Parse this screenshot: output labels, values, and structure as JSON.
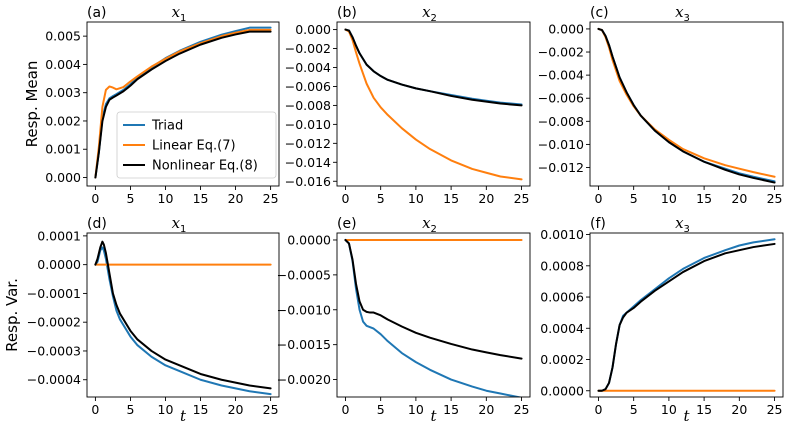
{
  "chart_data": {
    "type": "line",
    "legend": {
      "location": "panel (a), lower-right",
      "entries": [
        {
          "name": "Triad",
          "color": "#1f77b4"
        },
        {
          "name": "Linear Eq.(7)",
          "color": "#ff7f0e"
        },
        {
          "name": "Nonlinear Eq.(8)",
          "color": "#000000"
        }
      ]
    },
    "row_labels": {
      "top": "Resp. Mean",
      "bottom": "Resp. Var."
    },
    "xlabel": "t",
    "panels": [
      {
        "id": "a",
        "tag": "(a)",
        "title_var": "x",
        "title_sub": "1",
        "xlim": [
          -1.2,
          26.2
        ],
        "ylim": [
          -0.0003,
          0.0055
        ],
        "xticks": [
          0,
          5,
          10,
          15,
          20,
          25
        ],
        "yticks": [
          0.0,
          0.001,
          0.002,
          0.003,
          0.004,
          0.005
        ],
        "ytick_labels": [
          "0.000",
          "0.001",
          "0.002",
          "0.003",
          "0.004",
          "0.005"
        ],
        "series": [
          {
            "name": "Triad",
            "color": "#1f77b4",
            "x": [
              0,
              0.5,
              1,
              1.5,
              2,
              2.5,
              3,
              4,
              5,
              6,
              8,
              10,
              12,
              15,
              18,
              20,
              22,
              25
            ],
            "y": [
              0,
              0.0009,
              0.0021,
              0.0026,
              0.0028,
              0.00288,
              0.00295,
              0.0031,
              0.0033,
              0.00355,
              0.0039,
              0.00422,
              0.00448,
              0.0048,
              0.00505,
              0.00518,
              0.0053,
              0.0053
            ]
          },
          {
            "name": "Linear Eq.(7)",
            "color": "#ff7f0e",
            "x": [
              0,
              0.5,
              1,
              1.5,
              2,
              2.5,
              3,
              4,
              5,
              6,
              8,
              10,
              12,
              15,
              18,
              20,
              22,
              25
            ],
            "y": [
              0,
              0.0011,
              0.0025,
              0.0031,
              0.00322,
              0.00318,
              0.00312,
              0.0032,
              0.0034,
              0.00358,
              0.00392,
              0.0042,
              0.00446,
              0.00475,
              0.005,
              0.00512,
              0.00522,
              0.00522
            ]
          },
          {
            "name": "Nonlinear Eq.(8)",
            "color": "#000000",
            "x": [
              0,
              0.5,
              1,
              1.5,
              2,
              2.5,
              3,
              4,
              5,
              6,
              8,
              10,
              12,
              15,
              18,
              20,
              22,
              25
            ],
            "y": [
              0,
              0.0009,
              0.002,
              0.0025,
              0.00275,
              0.00283,
              0.0029,
              0.00305,
              0.00325,
              0.00348,
              0.00382,
              0.00412,
              0.00438,
              0.0047,
              0.00494,
              0.00506,
              0.00516,
              0.00516
            ]
          }
        ]
      },
      {
        "id": "b",
        "tag": "(b)",
        "title_var": "x",
        "title_sub": "2",
        "xlim": [
          -1.2,
          26.2
        ],
        "ylim": [
          -0.0165,
          0.0008
        ],
        "xticks": [
          0,
          5,
          10,
          15,
          20,
          25
        ],
        "yticks": [
          0.0,
          -0.002,
          -0.004,
          -0.006,
          -0.008,
          -0.01,
          -0.012,
          -0.014,
          -0.016
        ],
        "ytick_labels": [
          "0.000",
          "−0.002",
          "−0.004",
          "−0.006",
          "−0.008",
          "−0.010",
          "−0.012",
          "−0.014",
          "−0.016"
        ],
        "series": [
          {
            "name": "Triad",
            "color": "#1f77b4",
            "x": [
              0,
              0.5,
              1,
              1.5,
              2,
              3,
              4,
              5,
              6,
              8,
              10,
              12,
              15,
              18,
              20,
              22,
              25
            ],
            "y": [
              0,
              -0.0001,
              -0.0008,
              -0.0017,
              -0.0025,
              -0.0037,
              -0.0044,
              -0.0049,
              -0.0053,
              -0.0058,
              -0.0062,
              -0.0065,
              -0.0069,
              -0.0073,
              -0.0075,
              -0.0077,
              -0.0079
            ]
          },
          {
            "name": "Linear Eq.(7)",
            "color": "#ff7f0e",
            "x": [
              0,
              0.5,
              1,
              1.5,
              2,
              3,
              4,
              5,
              6,
              8,
              10,
              12,
              15,
              18,
              20,
              22,
              25
            ],
            "y": [
              0,
              -0.0002,
              -0.0011,
              -0.0024,
              -0.0036,
              -0.0057,
              -0.0072,
              -0.0082,
              -0.009,
              -0.0104,
              -0.0116,
              -0.0126,
              -0.0138,
              -0.0147,
              -0.0151,
              -0.0155,
              -0.0158
            ]
          },
          {
            "name": "Nonlinear Eq.(8)",
            "color": "#000000",
            "x": [
              0,
              0.5,
              1,
              1.5,
              2,
              3,
              4,
              5,
              6,
              8,
              10,
              12,
              15,
              18,
              20,
              22,
              25
            ],
            "y": [
              0,
              -0.0001,
              -0.0008,
              -0.0017,
              -0.0025,
              -0.0037,
              -0.0044,
              -0.0049,
              -0.0053,
              -0.0058,
              -0.0062,
              -0.0065,
              -0.007,
              -0.0074,
              -0.0076,
              -0.0078,
              -0.008
            ]
          }
        ]
      },
      {
        "id": "c",
        "tag": "(c)",
        "title_var": "x",
        "title_sub": "3",
        "xlim": [
          -1.2,
          26.2
        ],
        "ylim": [
          -0.0136,
          0.0006
        ],
        "xticks": [
          0,
          5,
          10,
          15,
          20,
          25
        ],
        "yticks": [
          0.0,
          -0.002,
          -0.004,
          -0.006,
          -0.008,
          -0.01,
          -0.012
        ],
        "ytick_labels": [
          "0.000",
          "−0.002",
          "−0.004",
          "−0.006",
          "−0.008",
          "−0.010",
          "−0.012"
        ],
        "series": [
          {
            "name": "Triad",
            "color": "#1f77b4",
            "x": [
              0,
              0.5,
              1,
              1.5,
              2,
              3,
              4,
              5,
              6,
              8,
              10,
              12,
              15,
              18,
              20,
              22,
              25
            ],
            "y": [
              0,
              -0.0001,
              -0.0006,
              -0.0014,
              -0.0024,
              -0.0042,
              -0.0055,
              -0.0066,
              -0.0075,
              -0.0088,
              -0.0098,
              -0.0106,
              -0.0115,
              -0.0121,
              -0.0125,
              -0.0128,
              -0.0132
            ]
          },
          {
            "name": "Linear Eq.(7)",
            "color": "#ff7f0e",
            "x": [
              0,
              0.5,
              1,
              1.5,
              2,
              3,
              4,
              5,
              6,
              8,
              10,
              12,
              15,
              18,
              20,
              22,
              25
            ],
            "y": [
              0,
              -0.0001,
              -0.0007,
              -0.0016,
              -0.0027,
              -0.0045,
              -0.0057,
              -0.0067,
              -0.0075,
              -0.0087,
              -0.0096,
              -0.0104,
              -0.0112,
              -0.0118,
              -0.0121,
              -0.0124,
              -0.0128
            ]
          },
          {
            "name": "Nonlinear Eq.(8)",
            "color": "#000000",
            "x": [
              0,
              0.5,
              1,
              1.5,
              2,
              3,
              4,
              5,
              6,
              8,
              10,
              12,
              15,
              18,
              20,
              22,
              25
            ],
            "y": [
              0,
              -0.0001,
              -0.0006,
              -0.0014,
              -0.0024,
              -0.0042,
              -0.0055,
              -0.0066,
              -0.0075,
              -0.0088,
              -0.0098,
              -0.0106,
              -0.0115,
              -0.0122,
              -0.0126,
              -0.0129,
              -0.0133
            ]
          }
        ]
      },
      {
        "id": "d",
        "tag": "(d)",
        "title_var": "x",
        "title_sub": "1",
        "xlim": [
          -1.2,
          26.2
        ],
        "ylim": [
          -0.00046,
          0.00011
        ],
        "xticks": [
          0,
          5,
          10,
          15,
          20,
          25
        ],
        "yticks": [
          0.0001,
          0.0,
          -0.0001,
          -0.0002,
          -0.0003,
          -0.0004
        ],
        "ytick_labels": [
          "0.0001",
          "0.0000",
          "−0.0001",
          "−0.0002",
          "−0.0003",
          "−0.0004"
        ],
        "series": [
          {
            "name": "Triad",
            "color": "#1f77b4",
            "x": [
              0,
              0.3,
              0.7,
              1,
              1.2,
              1.5,
              2,
              2.5,
              3,
              3.5,
              4,
              5,
              6,
              8,
              10,
              12,
              15,
              18,
              20,
              22,
              25
            ],
            "y": [
              0,
              1e-05,
              5e-05,
              6e-05,
              5e-05,
              2e-05,
              -5e-05,
              -0.00011,
              -0.00016,
              -0.00019,
              -0.00021,
              -0.00025,
              -0.00028,
              -0.00032,
              -0.00035,
              -0.00037,
              -0.0004,
              -0.00042,
              -0.00043,
              -0.00044,
              -0.00045
            ]
          },
          {
            "name": "Linear Eq.(7)",
            "color": "#ff7f0e",
            "x": [
              0,
              25
            ],
            "y": [
              0,
              0
            ]
          },
          {
            "name": "Nonlinear Eq.(8)",
            "color": "#000000",
            "x": [
              0,
              0.3,
              0.7,
              1,
              1.2,
              1.5,
              2,
              2.5,
              3,
              3.5,
              4,
              5,
              6,
              8,
              10,
              12,
              15,
              18,
              20,
              22,
              25
            ],
            "y": [
              0,
              2e-05,
              6e-05,
              8e-05,
              7e-05,
              4e-05,
              -3e-05,
              -0.0001,
              -0.00014,
              -0.00017,
              -0.00019,
              -0.00023,
              -0.00026,
              -0.0003,
              -0.00033,
              -0.00035,
              -0.00038,
              -0.0004,
              -0.00041,
              -0.00042,
              -0.00043
            ]
          }
        ]
      },
      {
        "id": "e",
        "tag": "(e)",
        "title_var": "x",
        "title_sub": "2",
        "xlim": [
          -1.2,
          26.2
        ],
        "ylim": [
          -0.00225,
          0.0001
        ],
        "xticks": [
          0,
          5,
          10,
          15,
          20,
          25
        ],
        "yticks": [
          0.0,
          -0.0005,
          -0.001,
          -0.0015,
          -0.002
        ],
        "ytick_labels": [
          "0.0000",
          "−0.0005",
          "−0.0010",
          "−0.0015",
          "−0.0020"
        ],
        "series": [
          {
            "name": "Triad",
            "color": "#1f77b4",
            "x": [
              0,
              0.5,
              1,
              1.5,
              2,
              2.5,
              3,
              3.5,
              4,
              5,
              6,
              8,
              10,
              12,
              15,
              18,
              20,
              22,
              25
            ],
            "y": [
              0,
              -5e-05,
              -0.0003,
              -0.0007,
              -0.001,
              -0.00117,
              -0.00123,
              -0.00125,
              -0.00127,
              -0.00135,
              -0.00145,
              -0.00162,
              -0.00175,
              -0.00186,
              -0.002,
              -0.0021,
              -0.00216,
              -0.0022,
              -0.00226
            ]
          },
          {
            "name": "Linear Eq.(7)",
            "color": "#ff7f0e",
            "x": [
              0,
              25
            ],
            "y": [
              0,
              0
            ]
          },
          {
            "name": "Nonlinear Eq.(8)",
            "color": "#000000",
            "x": [
              0,
              0.5,
              1,
              1.5,
              2,
              2.5,
              3,
              3.5,
              4,
              5,
              6,
              8,
              10,
              12,
              15,
              18,
              20,
              22,
              25
            ],
            "y": [
              0,
              -5e-05,
              -0.00028,
              -0.00063,
              -0.00088,
              -0.001,
              -0.00103,
              -0.00104,
              -0.00104,
              -0.00108,
              -0.00114,
              -0.00124,
              -0.00133,
              -0.0014,
              -0.00149,
              -0.00157,
              -0.00161,
              -0.00165,
              -0.0017
            ]
          }
        ]
      },
      {
        "id": "f",
        "tag": "(f)",
        "title_var": "x",
        "title_sub": "3",
        "xlim": [
          -1.2,
          26.2
        ],
        "ylim": [
          -4e-05,
          0.00101
        ],
        "xticks": [
          0,
          5,
          10,
          15,
          20,
          25
        ],
        "yticks": [
          0.0,
          0.0002,
          0.0004,
          0.0006,
          0.0008,
          0.001
        ],
        "ytick_labels": [
          "0.0000",
          "0.0002",
          "0.0004",
          "0.0006",
          "0.0008",
          "0.0010"
        ],
        "series": [
          {
            "name": "Triad",
            "color": "#1f77b4",
            "x": [
              0,
              0.5,
              1,
              1.5,
              2,
              2.5,
              3,
              3.5,
              4,
              5,
              6,
              8,
              10,
              12,
              15,
              18,
              20,
              22,
              25
            ],
            "y": [
              0,
              0,
              1e-05,
              5e-05,
              0.00015,
              0.0003,
              0.00042,
              0.00048,
              0.0005,
              0.00054,
              0.00058,
              0.00065,
              0.00072,
              0.00078,
              0.00085,
              0.0009,
              0.00093,
              0.00095,
              0.00097
            ]
          },
          {
            "name": "Linear Eq.(7)",
            "color": "#ff7f0e",
            "x": [
              0,
              25
            ],
            "y": [
              0,
              0
            ]
          },
          {
            "name": "Nonlinear Eq.(8)",
            "color": "#000000",
            "x": [
              0,
              0.5,
              1,
              1.5,
              2,
              2.5,
              3,
              3.5,
              4,
              5,
              6,
              8,
              10,
              12,
              15,
              18,
              20,
              22,
              25
            ],
            "y": [
              0,
              0,
              1e-05,
              5e-05,
              0.00015,
              0.0003,
              0.00042,
              0.00047,
              0.0005,
              0.00053,
              0.00057,
              0.00064,
              0.0007,
              0.00076,
              0.00083,
              0.00088,
              0.0009,
              0.00092,
              0.00094
            ]
          }
        ]
      }
    ]
  }
}
